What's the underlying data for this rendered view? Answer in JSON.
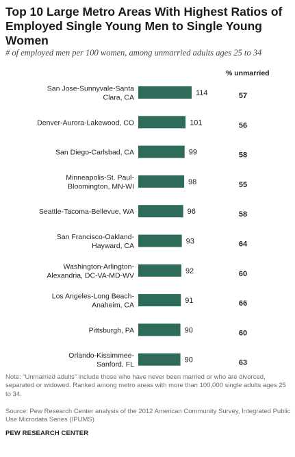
{
  "title": "Top 10 Large Metro Areas With Highest Ratios of Employed Single Young Men to Single Young Women",
  "subtitle": "# of employed men per 100 women, among unmarried adults ages 25 to 34",
  "column_header": "% unmarried",
  "note": "Note: “Unmarried adults” include those who have never been married or who are divorced, separated or widowed. Ranked among metro areas with more than 100,000 single adults ages 25 to 34.",
  "source": "Source: Pew Research Center analysis of the 2012 American Community Survey, Integrated Public Use Microdata Series (IPUMS)",
  "organization": "PEW RESEARCH CENTER",
  "bar_color": "#2e6b5a",
  "chart_data": {
    "type": "bar",
    "orientation": "horizontal",
    "title": "Top 10 Large Metro Areas With Highest Ratios of Employed Single Young Men to Single Young Women",
    "categories": [
      [
        "San Jose-Sunnyvale-Santa",
        "Clara, CA"
      ],
      [
        "Denver-Aurora-Lakewood, CO"
      ],
      [
        "San Diego-Carlsbad, CA"
      ],
      [
        "Minneapolis-St. Paul-",
        "Bloomington, MN-WI"
      ],
      [
        "Seattle-Tacoma-Bellevue, WA"
      ],
      [
        "San Francisco-Oakland-",
        "Hayward, CA"
      ],
      [
        "Washington-Arlington-",
        "Alexandria, DC-VA-MD-WV"
      ],
      [
        "Los Angeles-Long Beach-",
        "Anaheim, CA"
      ],
      [
        "Pittsburgh, PA"
      ],
      [
        "Orlando-Kissimmee-",
        "Sanford, FL"
      ]
    ],
    "values": [
      114,
      101,
      99,
      98,
      96,
      93,
      92,
      91,
      90,
      90
    ],
    "percent_unmarried": [
      57,
      56,
      58,
      55,
      58,
      64,
      60,
      66,
      60,
      63
    ],
    "xlim": [
      0,
      114
    ],
    "data_labels": true
  }
}
